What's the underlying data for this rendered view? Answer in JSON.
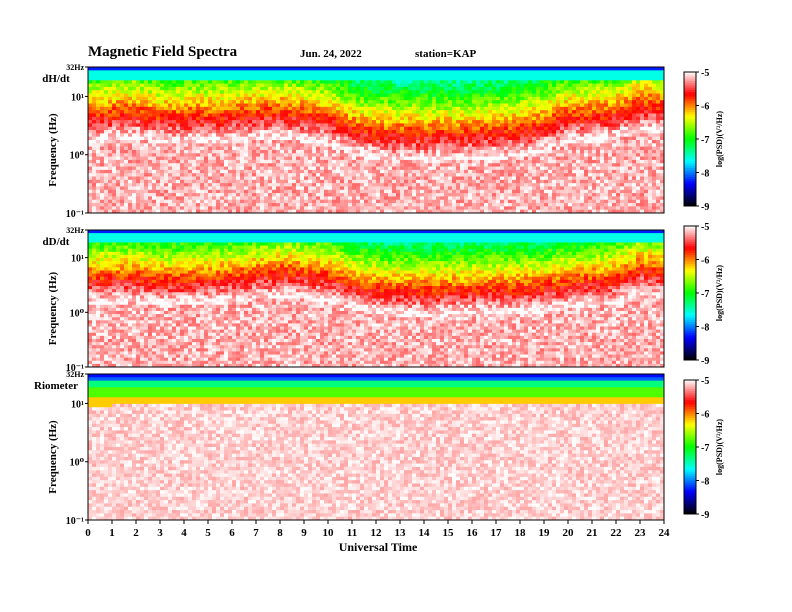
{
  "header": {
    "title": "Magnetic Field Spectra",
    "date": "Jun. 24, 2022",
    "station": "station=KAP"
  },
  "colors": {
    "colormap": [
      "#000000",
      "#0000ff",
      "#00ffff",
      "#00ff00",
      "#ffff00",
      "#ff0000",
      "#ffffff"
    ]
  },
  "chart_data": [
    {
      "type": "heatmap",
      "panel_label": "dH/dt",
      "ylabel": "Frequency  (Hz)",
      "y_scale": "log",
      "ylim": [
        0.1,
        32
      ],
      "ytick_labels": [
        "32Hz",
        "10¹",
        "10⁰",
        "10⁻¹"
      ],
      "xlim": [
        0,
        24
      ],
      "colorbar": {
        "label": "log(PSD)(V²/Hz)",
        "range": [
          -9,
          -5
        ],
        "tick_labels": [
          "-5",
          "-6",
          "-7",
          "-8",
          "-9"
        ]
      },
      "profile": {
        "hours": [
          0,
          2,
          3,
          6,
          8,
          10,
          11,
          12,
          14,
          16,
          18,
          19,
          20,
          21,
          22,
          23,
          24
        ],
        "transition_log_freq": [
          0.55,
          0.62,
          0.52,
          0.55,
          0.62,
          0.5,
          0.34,
          0.25,
          0.23,
          0.25,
          0.3,
          0.4,
          0.55,
          0.55,
          0.6,
          0.75,
          0.7
        ]
      }
    },
    {
      "type": "heatmap",
      "panel_label": "dD/dt",
      "ylabel": "Frequency  (Hz)",
      "y_scale": "log",
      "ylim": [
        0.1,
        32
      ],
      "ytick_labels": [
        "32Hz",
        "10¹",
        "10⁰",
        "10⁻¹"
      ],
      "xlim": [
        0,
        24
      ],
      "colorbar": {
        "label": "log(PSD)(V²/Hz)",
        "range": [
          -9,
          -5
        ],
        "tick_labels": [
          "-5",
          "-6",
          "-7",
          "-8",
          "-9"
        ]
      },
      "profile": {
        "hours": [
          0,
          2,
          3,
          6,
          8,
          10,
          11,
          12,
          14,
          16,
          18,
          19,
          20,
          21,
          22,
          23,
          24
        ],
        "transition_log_freq": [
          0.5,
          0.52,
          0.45,
          0.52,
          0.62,
          0.55,
          0.4,
          0.3,
          0.28,
          0.3,
          0.32,
          0.35,
          0.42,
          0.45,
          0.5,
          0.68,
          0.6
        ]
      }
    },
    {
      "type": "heatmap",
      "panel_label": "Riometer",
      "ylabel": "Frequency  (Hz)",
      "y_scale": "log",
      "ylim": [
        0.1,
        32
      ],
      "ytick_labels": [
        "32Hz",
        "10¹",
        "10⁰",
        "10⁻¹"
      ],
      "xlim": [
        0,
        24
      ],
      "xlabel": "Universal Time",
      "xtick_labels": [
        "0",
        "1",
        "2",
        "3",
        "4",
        "5",
        "6",
        "7",
        "8",
        "9",
        "10",
        "11",
        "12",
        "13",
        "14",
        "15",
        "16",
        "17",
        "18",
        "19",
        "20",
        "21",
        "22",
        "23",
        "24"
      ],
      "colorbar": {
        "label": "log(PSD)(V²/Hz)",
        "range": [
          -9,
          -5
        ],
        "tick_labels": [
          "-5",
          "-6",
          "-7",
          "-8",
          "-9"
        ]
      },
      "profile": {
        "hours": [
          0,
          2,
          3,
          6,
          12,
          18,
          24
        ],
        "transition_log_freq": [
          0.95,
          0.98,
          0.98,
          0.98,
          0.98,
          0.98,
          0.98
        ]
      }
    }
  ]
}
